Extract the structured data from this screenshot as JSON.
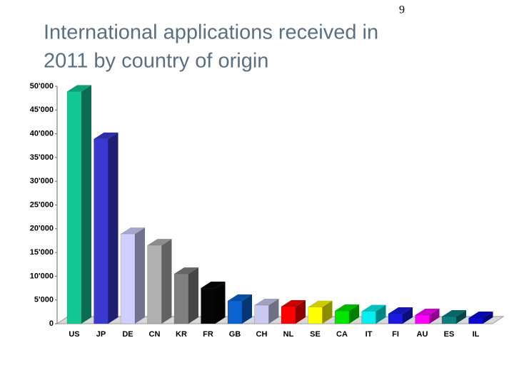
{
  "page_number": "9",
  "chart_data": {
    "type": "bar3d",
    "title": [
      "International applications received in",
      "2011 by country of origin"
    ],
    "categories": [
      "US",
      "JP",
      "DE",
      "CN",
      "KR",
      "FR",
      "GB",
      "CH",
      "NL",
      "SE",
      "CA",
      "IT",
      "FI",
      "AU",
      "ES",
      "IL"
    ],
    "values": [
      48900,
      38900,
      18900,
      16500,
      10500,
      7500,
      4800,
      3900,
      3600,
      3500,
      2700,
      2600,
      2100,
      1800,
      1500,
      1200
    ],
    "colors": [
      "#13c796",
      "#3a3ad0",
      "#cfcfff",
      "#b0b0b0",
      "#808080",
      "#050505",
      "#0a63d0",
      "#c9c9f2",
      "#ff0000",
      "#ffff00",
      "#00e600",
      "#00f0f0",
      "#1a1ae0",
      "#ff00ff",
      "#0c7f7f",
      "#0a0ad8"
    ],
    "ylim": [
      0,
      50000
    ],
    "yticks": [
      0,
      {
        "value": 5000,
        "label": "5'000"
      },
      {
        "value": 10000,
        "label": "10'000"
      },
      {
        "value": 15000,
        "label": "15'000"
      },
      {
        "value": 20000,
        "label": "20'000"
      },
      {
        "value": 25000,
        "label": "25'000"
      },
      {
        "value": 30000,
        "label": "30'000"
      },
      {
        "value": 35000,
        "label": "35'000"
      },
      {
        "value": 40000,
        "label": "40'000"
      },
      {
        "value": 45000,
        "label": "45'000"
      },
      {
        "value": 50000,
        "label": "50'000"
      }
    ]
  }
}
